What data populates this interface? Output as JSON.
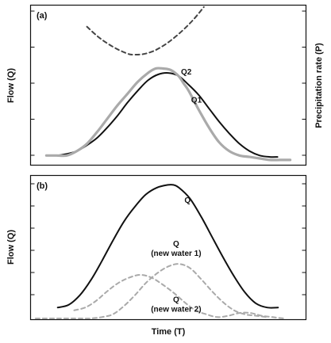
{
  "figure": {
    "y_axis_left_label": "Flow (Q)",
    "y_axis_right_label": "Precipitation rate (P)",
    "x_axis_label": "Time (T)"
  },
  "chart_data": [
    {
      "type": "line",
      "panel_label": "(a)",
      "xlabel": "",
      "ylabel": "Flow (Q)",
      "ylabel_right": "Precipitation rate (P)",
      "xlim": [
        0,
        100
      ],
      "ylim": [
        0,
        100
      ],
      "y_ticks": 5,
      "x_ticks": 0,
      "grid": false,
      "series": [
        {
          "name": "",
          "axis": "right",
          "color": "#444444",
          "style": "dashed",
          "x": [
            18,
            22,
            26,
            30,
            34,
            36,
            40,
            44,
            48,
            52,
            56,
            60,
            64
          ],
          "y": [
            110,
            91,
            76,
            64,
            55,
            53,
            54,
            60,
            71,
            86,
            104,
            125,
            150
          ]
        },
        {
          "name": "Q1",
          "axis": "left",
          "color": "#111111",
          "style": "solid",
          "x": [
            2,
            6,
            10,
            14,
            18,
            22,
            26,
            30,
            34,
            38,
            42,
            46,
            50,
            54,
            58,
            62,
            66,
            70,
            74,
            78,
            82,
            86,
            90,
            93
          ],
          "y": [
            2,
            2,
            3,
            5,
            9,
            14,
            21,
            29,
            38,
            46,
            53,
            57,
            58,
            56,
            50,
            43,
            34,
            25,
            17,
            10,
            5,
            2,
            1,
            1
          ],
          "label_at": [
            59,
            38
          ]
        },
        {
          "name": "Q2",
          "axis": "left",
          "color": "#aaaaaa",
          "style": "solid",
          "x": [
            2,
            6,
            10,
            14,
            18,
            22,
            26,
            30,
            34,
            38,
            42,
            45,
            48,
            51,
            54,
            56,
            58,
            62,
            66,
            70,
            74,
            78,
            82,
            86,
            90,
            94,
            98
          ],
          "y": [
            2,
            2,
            2,
            5,
            10,
            18,
            27,
            36,
            44,
            52,
            58,
            61,
            61,
            60,
            56,
            51,
            46,
            33,
            21,
            11,
            5,
            2,
            1,
            0,
            -1,
            -1,
            -1
          ],
          "label_at": [
            55,
            57
          ]
        }
      ]
    },
    {
      "type": "line",
      "panel_label": "(b)",
      "xlabel": "Time (T)",
      "ylabel": "Flow (Q)",
      "xlim": [
        0,
        100
      ],
      "ylim": [
        0,
        100
      ],
      "y_ticks": 6,
      "x_ticks": 0,
      "grid": false,
      "series": [
        {
          "name": "Q",
          "color": "#111111",
          "style": "solid",
          "x": [
            10,
            14,
            18,
            22,
            26,
            30,
            34,
            38,
            42,
            46,
            50,
            52,
            54,
            58,
            62,
            66,
            70,
            74,
            78,
            82,
            86,
            90
          ],
          "y": [
            8,
            10,
            17,
            28,
            42,
            57,
            71,
            82,
            91,
            96,
            98,
            98,
            96,
            88,
            75,
            60,
            45,
            31,
            19,
            11,
            8,
            8
          ],
          "label_at": [
            56,
            85
          ]
        },
        {
          "name": "Q\n(new water 1)",
          "color": "#aaaaaa",
          "style": "dashed",
          "x": [
            2,
            10,
            18,
            22,
            26,
            30,
            34,
            38,
            42,
            46,
            50,
            54,
            58,
            62,
            66,
            70,
            74,
            78,
            82,
            86
          ],
          "y": [
            0,
            0,
            0,
            0,
            1,
            3,
            9,
            17,
            26,
            33,
            38,
            40,
            37,
            29,
            20,
            12,
            6,
            3,
            2,
            1
          ],
          "label_at": [
            53,
            53
          ]
        },
        {
          "name": "Q\n(new water 2)",
          "color": "#aaaaaa",
          "style": "dashed",
          "x": [
            16,
            20,
            24,
            28,
            32,
            36,
            40,
            44,
            48,
            52,
            56,
            60,
            64,
            68,
            72,
            76,
            80,
            84,
            88,
            92
          ],
          "y": [
            6,
            8,
            13,
            20,
            26,
            30,
            32,
            30,
            25,
            19,
            12,
            6,
            3,
            1,
            2,
            4,
            4,
            2,
            1,
            0
          ],
          "label_at": [
            53,
            12
          ]
        }
      ]
    }
  ]
}
